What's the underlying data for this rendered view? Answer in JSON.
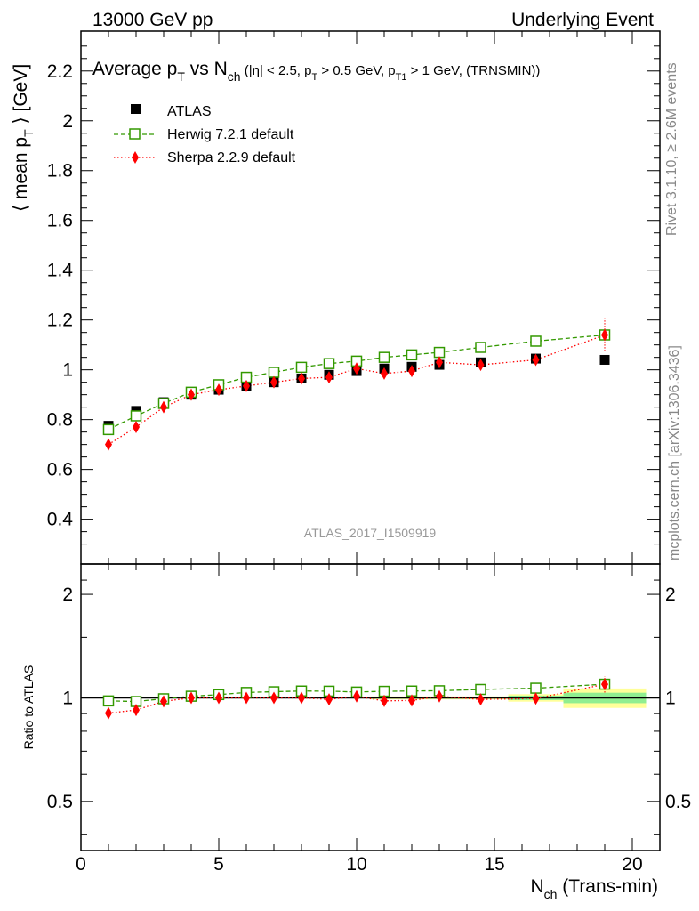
{
  "header": {
    "left": "13000 GeV pp",
    "right": "Underlying Event"
  },
  "side_labels": {
    "rivet": "Rivet 3.1.10, ≥ 2.6M events",
    "mcplots": "mcplots.cern.ch [arXiv:1306.3436]"
  },
  "watermark": "ATLAS_2017_I1509919",
  "title": {
    "main": "Average p",
    "main_sub": "T",
    "vs": " vs N",
    "vs_sub": "ch",
    "cuts_1": " (|η| < 2.5, p",
    "cuts_1_sub": "T",
    "cuts_2": " > 0.5 GeV, p",
    "cuts_2_sub": "T1",
    "cuts_3": " > 1 GeV, (TRNSMIN))"
  },
  "axes": {
    "ylabel_main_pre": "⟨ mean p",
    "ylabel_main_sub": "T",
    "ylabel_main_post": " ⟩ [GeV]",
    "ylabel_ratio": "Ratio to ATLAS",
    "xlabel_pre": "N",
    "xlabel_sub": "ch",
    "xlabel_post": " (Trans-min)"
  },
  "chart_data": {
    "type": "scatter",
    "xlim": [
      0,
      21
    ],
    "ylim": [
      0.22,
      2.36
    ],
    "ratio_ylim": [
      0.36,
      2.45
    ],
    "ratio_scale": "log",
    "x_ticks": [
      0,
      5,
      10,
      15,
      20
    ],
    "y_ticks": [
      0.4,
      0.6,
      0.8,
      1,
      1.2,
      1.4,
      1.6,
      1.8,
      2,
      2.2
    ],
    "y_tick_labels": [
      "0.4",
      "0.6",
      "0.8",
      "1",
      "1.2",
      "1.4",
      "1.6",
      "1.8",
      "2",
      "2.2"
    ],
    "ratio_ticks": [
      0.5,
      1,
      2
    ],
    "ratio_tick_labels": [
      "0.5",
      "1",
      "2"
    ],
    "x_tick_labels": [
      "0",
      "5",
      "10",
      "15",
      "20"
    ],
    "legend_position": "top-left",
    "series": [
      {
        "name": "ATLAS",
        "color": "#000000",
        "marker": "filled-square",
        "x": [
          1,
          2,
          3,
          4,
          5,
          6,
          7,
          8,
          9,
          10,
          11,
          12,
          13,
          14.5,
          16.5,
          19
        ],
        "y": [
          0.775,
          0.835,
          0.87,
          0.9,
          0.92,
          0.935,
          0.95,
          0.965,
          0.98,
          0.995,
          1.005,
          1.012,
          1.02,
          1.03,
          1.045,
          1.04
        ]
      },
      {
        "name": "Herwig 7.2.1 default",
        "color": "#339900",
        "marker": "open-square",
        "line": "dashed",
        "x": [
          1,
          2,
          3,
          4,
          5,
          6,
          7,
          8,
          9,
          10,
          11,
          12,
          13,
          14.5,
          16.5,
          19
        ],
        "y": [
          0.76,
          0.815,
          0.865,
          0.91,
          0.94,
          0.97,
          0.99,
          1.01,
          1.025,
          1.035,
          1.05,
          1.06,
          1.07,
          1.09,
          1.115,
          1.14
        ],
        "ratio": [
          0.98,
          0.976,
          0.994,
          1.011,
          1.022,
          1.037,
          1.042,
          1.047,
          1.046,
          1.04,
          1.045,
          1.047,
          1.049,
          1.058,
          1.067,
          1.096
        ]
      },
      {
        "name": "Sherpa 2.2.9 default",
        "color": "#ff0000",
        "marker": "filled-diamond",
        "line": "dotted",
        "x": [
          1,
          2,
          3,
          4,
          5,
          6,
          7,
          8,
          9,
          10,
          11,
          12,
          13,
          14.5,
          16.5,
          19
        ],
        "y": [
          0.7,
          0.77,
          0.85,
          0.9,
          0.92,
          0.935,
          0.95,
          0.965,
          0.97,
          1.005,
          0.985,
          0.995,
          1.03,
          1.02,
          1.04,
          1.14
        ],
        "y_err": [
          0,
          0,
          0,
          0,
          0,
          0,
          0,
          0,
          0,
          0,
          0,
          0,
          0,
          0,
          0,
          0.065
        ],
        "ratio": [
          0.903,
          0.922,
          0.977,
          1.0,
          1.0,
          1.0,
          1.0,
          1.0,
          0.99,
          1.01,
          0.98,
          0.983,
          1.01,
          0.99,
          0.995,
          1.096
        ],
        "ratio_err": [
          0,
          0,
          0,
          0,
          0,
          0,
          0,
          0,
          0,
          0,
          0,
          0,
          0,
          0,
          0,
          0.06
        ]
      }
    ],
    "ratio_bands": [
      {
        "x": [
          10.5,
          15.5
        ],
        "inner": [
          0.995,
          1.005
        ],
        "outer": [
          0.99,
          1.01
        ]
      },
      {
        "x": [
          15.5,
          17.5
        ],
        "inner": [
          0.985,
          1.015
        ],
        "outer": [
          0.975,
          1.025
        ]
      },
      {
        "x": [
          17.5,
          20.5
        ],
        "inner": [
          0.965,
          1.035
        ],
        "outer": [
          0.935,
          1.065
        ]
      }
    ],
    "band_colors": {
      "inner": "#90ee90",
      "outer": "#ffff99"
    }
  }
}
